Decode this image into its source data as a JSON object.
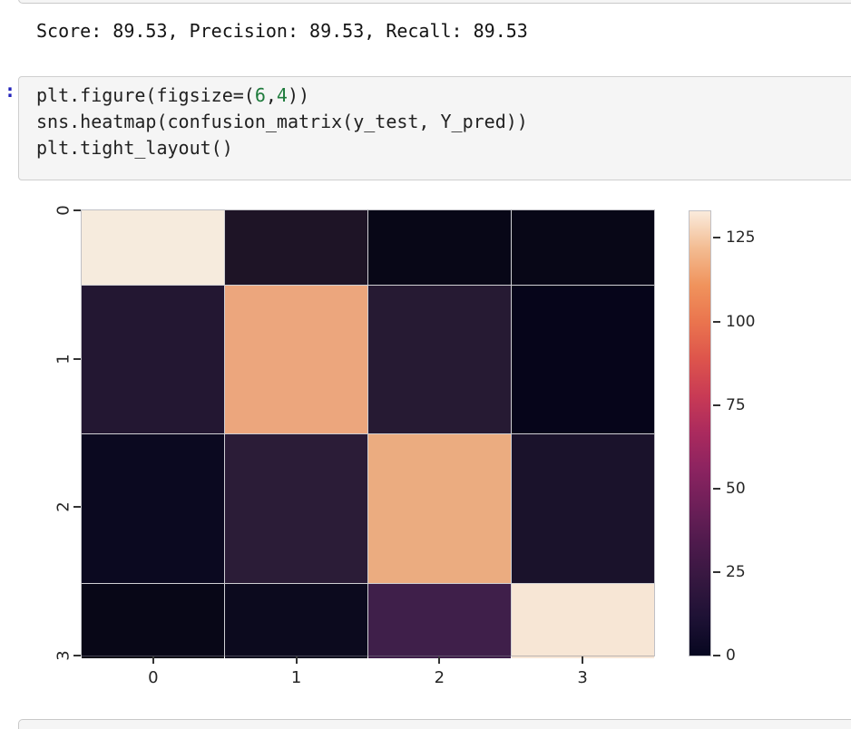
{
  "prev_cell_output": {
    "score_line": "Score: 89.53, Precision: 89.53, Recall: 89.53"
  },
  "code_cell": {
    "prompt": ":",
    "lines": [
      [
        {
          "t": "plt.figure(figsize=(",
          "s": "plain"
        },
        {
          "t": "6",
          "s": "number"
        },
        {
          "t": ",",
          "s": "plain"
        },
        {
          "t": "4",
          "s": "number"
        },
        {
          "t": "))",
          "s": "plain"
        }
      ],
      [
        {
          "t": "sns.heatmap(confusion_matrix(y_test, Y_pred))",
          "s": "plain"
        }
      ],
      [
        {
          "t": "plt.tight_layout()",
          "s": "plain"
        }
      ]
    ]
  },
  "chart_data": {
    "type": "heatmap",
    "title": "",
    "xlabel": "",
    "ylabel": "",
    "x_tick_labels": [
      "0",
      "1",
      "2",
      "3"
    ],
    "y_tick_labels": [
      "0",
      "1",
      "2",
      "3"
    ],
    "values_estimated": [
      [
        133,
        11,
        2,
        2
      ],
      [
        14,
        107,
        15,
        3
      ],
      [
        4,
        17,
        108,
        9
      ],
      [
        2,
        4,
        25,
        128
      ]
    ],
    "cell_colors": [
      [
        "#f6ebdd",
        "#1e1426",
        "#080717",
        "#080717"
      ],
      [
        "#231732",
        "#eca67d",
        "#261a33",
        "#06051a"
      ],
      [
        "#0b0920",
        "#2b1c37",
        "#ebac80",
        "#1a122b"
      ],
      [
        "#080717",
        "#0c0a1e",
        "#3f1f4a",
        "#f7e6d5"
      ]
    ],
    "colorbar": {
      "ticks": [
        0,
        25,
        50,
        75,
        100,
        125
      ],
      "vmin": 0,
      "vmax": 133,
      "gradient_bottom_to_top": [
        "#070720",
        "#1d1134",
        "#34173f",
        "#4d1a4c",
        "#6c1f58",
        "#8b2360",
        "#aa2a5e",
        "#c83a55",
        "#dd544c",
        "#ea744e",
        "#f0935c",
        "#f3bc92",
        "#faebdc"
      ]
    },
    "layout": {
      "colormap": "rocket",
      "colorbar_position": "right",
      "first_last_rows_half_height": true,
      "grid": false,
      "annotations": false
    }
  },
  "colors": {
    "cell_bg": "#f5f5f5",
    "cell_border": "#cfcfcf",
    "prompt_blue": "#2222bb",
    "code_text": "#212121",
    "code_number_green": "#1e7b3c",
    "tick_text": "#262626"
  }
}
